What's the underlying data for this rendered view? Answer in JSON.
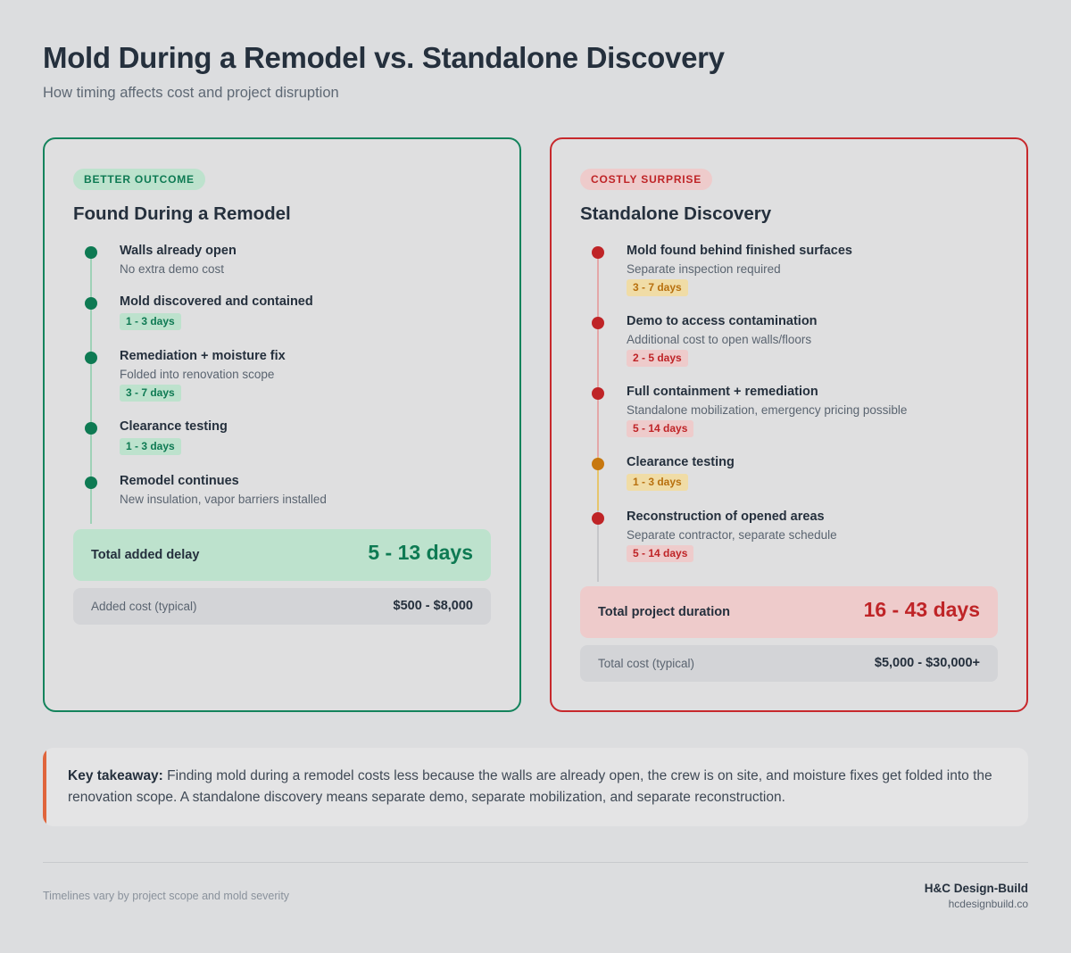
{
  "header": {
    "title": "Mold During a Remodel vs. Standalone Discovery",
    "subtitle": "How timing affects cost and project disruption"
  },
  "colors": {
    "good": "#0e7a53",
    "bad": "#bf2427",
    "warning": "#c7770f",
    "accent": "#e0653c"
  },
  "left_card": {
    "badge": "BETTER OUTCOME",
    "title": "Found During a Remodel",
    "steps": [
      {
        "title": "Walls already open",
        "desc": "No extra demo cost",
        "pill": ""
      },
      {
        "title": "Mold discovered and contained",
        "desc": "",
        "pill": "1 - 3 days"
      },
      {
        "title": "Remediation + moisture fix",
        "desc": "Folded into renovation scope",
        "pill": "3 - 7 days"
      },
      {
        "title": "Clearance testing",
        "desc": "",
        "pill": "1 - 3 days"
      },
      {
        "title": "Remodel continues",
        "desc": "New insulation, vapor barriers installed",
        "pill": ""
      }
    ],
    "total_label": "Total added delay",
    "total_value": "5 - 13 days",
    "cost_label": "Added cost (typical)",
    "cost_value": "$500 - $8,000"
  },
  "right_card": {
    "badge": "COSTLY SURPRISE",
    "title": "Standalone Discovery",
    "steps": [
      {
        "title": "Mold found behind finished surfaces",
        "desc": "Separate inspection required",
        "pill": "3 - 7 days"
      },
      {
        "title": "Demo to access contamination",
        "desc": "Additional cost to open walls/floors",
        "pill": "2 - 5 days"
      },
      {
        "title": "Full containment + remediation",
        "desc": "Standalone mobilization, emergency pricing possible",
        "pill": "5 - 14 days"
      },
      {
        "title": "Clearance testing",
        "desc": "",
        "pill": "1 - 3 days"
      },
      {
        "title": "Reconstruction of opened areas",
        "desc": "Separate contractor, separate schedule",
        "pill": "5 - 14 days"
      }
    ],
    "total_label": "Total project duration",
    "total_value": "16 - 43 days",
    "cost_label": "Total cost (typical)",
    "cost_value": "$5,000 - $30,000+"
  },
  "takeaway": {
    "label": "Key takeaway:",
    "text": "Finding mold during a remodel costs less because the walls are already open, the crew is on site, and moisture fixes get folded into the renovation scope. A standalone discovery means separate demo, separate mobilization, and separate reconstruction."
  },
  "footer": {
    "note": "Timelines vary by project scope and mold severity",
    "brand": "H&C Design-Build",
    "url": "hcdesignbuild.co"
  }
}
